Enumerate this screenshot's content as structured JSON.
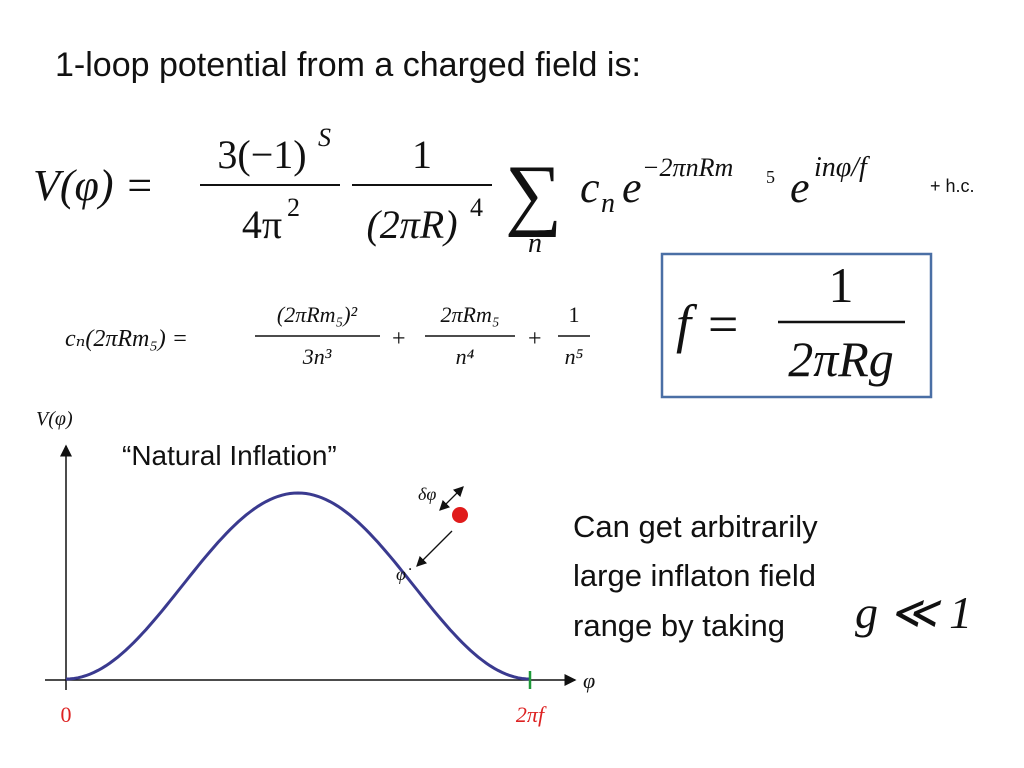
{
  "title": "1-loop potential from a charged field is:",
  "potential": {
    "lhs": "V(φ) =",
    "frac1_num": "3(−1)",
    "frac1_num_sup": "S",
    "frac1_den": "4π",
    "frac1_den_sup": "2",
    "frac2_num": "1",
    "frac2_den": "(2πR)",
    "frac2_den_sup": "4",
    "sum": "∑",
    "sum_index": "n",
    "coef": "c",
    "coef_sub": "n",
    "exp_base1": "e",
    "exp1": "−2πnRm",
    "exp1_sub": "5",
    "exp_base2": "e",
    "exp2": "inφ/f",
    "conjugate": "+ h.c."
  },
  "coefficient": {
    "lhs": "cₙ(2πRm₅) =",
    "term1_num": "(2πRm₅)²",
    "term1_den": "3n³",
    "plus1": "+",
    "term2_num": "2πRm₅",
    "term2_den": "n⁴",
    "plus2": "+",
    "term3_num": "1",
    "term3_den": "n⁵"
  },
  "decay_constant": {
    "lhs": "f =",
    "num": "1",
    "den": "2πRg"
  },
  "plot": {
    "y_label": "V(φ)",
    "x_label": "φ",
    "x_origin": "0",
    "x_end": "2πf",
    "fluctuation": "δφ",
    "velocity": "φ̇",
    "caption": "“Natural Inflation”"
  },
  "note": {
    "lines": [
      "Can get arbitrarily",
      "large inflaton field",
      "range by taking"
    ],
    "condition": "g ≪ 1"
  }
}
